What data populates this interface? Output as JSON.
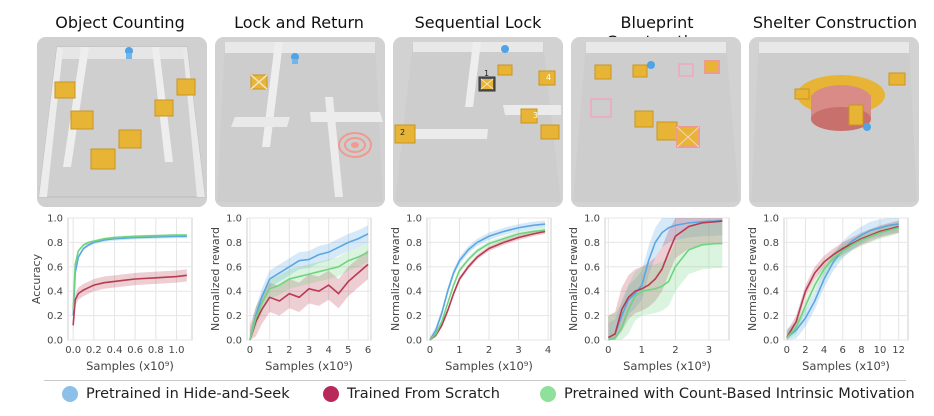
{
  "panel_titles": [
    "Object Counting",
    "Lock and Return",
    "Sequential Lock",
    "Blueprint Construction",
    "Shelter Construction"
  ],
  "legend": [
    {
      "label": "Pretrained in Hide-and-Seek",
      "color": "#6aaee0"
    },
    {
      "label": "Trained From Scratch",
      "color": "#b8285a"
    },
    {
      "label": "Pretrained with Count-Based Intrinsic Motivation",
      "color": "#78d98a"
    }
  ],
  "colors": {
    "blue": "#5aa7e3",
    "red": "#b83b50",
    "green": "#6fd47e",
    "box": "#e7b436",
    "floor": "#cfcfcf"
  },
  "chart_data": [
    {
      "type": "line",
      "title": "Object Counting",
      "xlabel": "Samples (x10⁹)",
      "ylabel": "Accuracy",
      "xlim": [
        -0.05,
        1.15
      ],
      "ylim": [
        0,
        1.0
      ],
      "xticks": [
        0.0,
        0.2,
        0.4,
        0.6,
        0.8,
        1.0
      ],
      "xtick_labels": [
        "0.0",
        "0.2",
        "0.4",
        "0.6",
        "0.8",
        "1.0"
      ],
      "yticks": [
        0.0,
        0.2,
        0.4,
        0.6,
        0.8,
        1.0
      ],
      "ytick_labels": [
        "0.0",
        "0.2",
        "0.4",
        "0.6",
        "0.8",
        "1.0"
      ],
      "series": [
        {
          "name": "Pretrained in Hide-and-Seek",
          "color": "#5aa7e3",
          "x": [
            0,
            0.02,
            0.05,
            0.1,
            0.15,
            0.2,
            0.3,
            0.4,
            0.6,
            0.8,
            1.0,
            1.1
          ],
          "y": [
            0.2,
            0.55,
            0.68,
            0.75,
            0.78,
            0.8,
            0.82,
            0.83,
            0.84,
            0.845,
            0.85,
            0.85
          ],
          "band": 0.015
        },
        {
          "name": "Trained From Scratch",
          "color": "#b83b50",
          "x": [
            0,
            0.02,
            0.05,
            0.1,
            0.15,
            0.2,
            0.3,
            0.4,
            0.6,
            0.8,
            1.0,
            1.1
          ],
          "y": [
            0.12,
            0.33,
            0.38,
            0.41,
            0.43,
            0.45,
            0.47,
            0.48,
            0.5,
            0.51,
            0.52,
            0.53
          ],
          "band": 0.05
        },
        {
          "name": "Pretrained with Count-Based Intrinsic Motivation",
          "color": "#6fd47e",
          "x": [
            0,
            0.02,
            0.05,
            0.1,
            0.15,
            0.2,
            0.3,
            0.4,
            0.6,
            0.8,
            1.0,
            1.1
          ],
          "y": [
            0.25,
            0.62,
            0.73,
            0.78,
            0.8,
            0.81,
            0.83,
            0.84,
            0.85,
            0.855,
            0.86,
            0.86
          ],
          "band": 0.01
        }
      ]
    },
    {
      "type": "line",
      "title": "Lock and Return",
      "xlabel": "Samples (x10⁹)",
      "ylabel": "Normalized reward",
      "xlim": [
        -0.15,
        6.15
      ],
      "ylim": [
        0,
        1.0
      ],
      "xticks": [
        0,
        1,
        2,
        3,
        4,
        5,
        6
      ],
      "xtick_labels": [
        "0",
        "1",
        "2",
        "3",
        "4",
        "5",
        "6"
      ],
      "yticks": [
        0.0,
        0.2,
        0.4,
        0.6,
        0.8,
        1.0
      ],
      "ytick_labels": [
        "0.0",
        "0.2",
        "0.4",
        "0.6",
        "0.8",
        "1.0"
      ],
      "series": [
        {
          "name": "Pretrained in Hide-and-Seek",
          "color": "#5aa7e3",
          "x": [
            0,
            0.3,
            0.6,
            1,
            1.5,
            2,
            2.5,
            3,
            3.5,
            4,
            4.5,
            5,
            5.5,
            6
          ],
          "y": [
            0,
            0.2,
            0.35,
            0.5,
            0.55,
            0.6,
            0.65,
            0.66,
            0.7,
            0.72,
            0.76,
            0.8,
            0.83,
            0.87
          ],
          "band": 0.07
        },
        {
          "name": "Trained From Scratch",
          "color": "#b83b50",
          "x": [
            0,
            0.3,
            0.6,
            1,
            1.5,
            2,
            2.5,
            3,
            3.5,
            4,
            4.5,
            5,
            5.5,
            6
          ],
          "y": [
            0,
            0.15,
            0.25,
            0.35,
            0.32,
            0.38,
            0.35,
            0.42,
            0.4,
            0.45,
            0.38,
            0.48,
            0.55,
            0.62
          ],
          "band": 0.12
        },
        {
          "name": "Pretrained with Count-Based Intrinsic Motivation",
          "color": "#6fd47e",
          "x": [
            0,
            0.3,
            0.6,
            1,
            1.5,
            2,
            2.5,
            3,
            3.5,
            4,
            4.5,
            5,
            5.5,
            6
          ],
          "y": [
            0,
            0.18,
            0.3,
            0.42,
            0.45,
            0.5,
            0.52,
            0.54,
            0.56,
            0.58,
            0.6,
            0.65,
            0.68,
            0.72
          ],
          "band": 0.08
        }
      ]
    },
    {
      "type": "line",
      "title": "Sequential Lock",
      "xlabel": "Samples (x10⁹)",
      "ylabel": "Normalized reward",
      "xlim": [
        -0.1,
        4.1
      ],
      "ylim": [
        0,
        1.0
      ],
      "xticks": [
        0,
        1,
        2,
        3,
        4
      ],
      "xtick_labels": [
        "0",
        "1",
        "2",
        "3",
        "4"
      ],
      "yticks": [
        0.0,
        0.2,
        0.4,
        0.6,
        0.8,
        1.0
      ],
      "ytick_labels": [
        "0.0",
        "0.2",
        "0.4",
        "0.6",
        "0.8",
        "1.0"
      ],
      "series": [
        {
          "name": "Pretrained in Hide-and-Seek",
          "color": "#5aa7e3",
          "x": [
            0,
            0.2,
            0.4,
            0.6,
            0.8,
            1,
            1.3,
            1.6,
            2,
            2.5,
            3,
            3.5,
            3.9
          ],
          "y": [
            0,
            0.08,
            0.22,
            0.4,
            0.55,
            0.65,
            0.74,
            0.8,
            0.85,
            0.89,
            0.92,
            0.94,
            0.95
          ],
          "band": 0.03
        },
        {
          "name": "Trained From Scratch",
          "color": "#b83b50",
          "x": [
            0,
            0.2,
            0.4,
            0.6,
            0.8,
            1,
            1.3,
            1.6,
            2,
            2.5,
            3,
            3.5,
            3.9
          ],
          "y": [
            0,
            0.04,
            0.12,
            0.24,
            0.38,
            0.5,
            0.6,
            0.68,
            0.75,
            0.8,
            0.84,
            0.87,
            0.89
          ],
          "band": 0.02
        },
        {
          "name": "Pretrained with Count-Based Intrinsic Motivation",
          "color": "#6fd47e",
          "x": [
            0,
            0.2,
            0.4,
            0.6,
            0.8,
            1,
            1.3,
            1.6,
            2,
            2.5,
            3,
            3.5,
            3.9
          ],
          "y": [
            0,
            0.05,
            0.15,
            0.3,
            0.45,
            0.57,
            0.66,
            0.73,
            0.79,
            0.83,
            0.87,
            0.89,
            0.9
          ],
          "band": 0.02
        }
      ]
    },
    {
      "type": "line",
      "title": "Blueprint Construction",
      "xlabel": "Samples (x10⁹)",
      "ylabel": "Normalized reward",
      "xlim": [
        -0.1,
        3.6
      ],
      "ylim": [
        0,
        1.0
      ],
      "xticks": [
        0,
        1,
        2,
        3
      ],
      "xtick_labels": [
        "0",
        "1",
        "2",
        "3"
      ],
      "yticks": [
        0.0,
        0.2,
        0.4,
        0.6,
        0.8,
        1.0
      ],
      "ytick_labels": [
        "0.0",
        "0.2",
        "0.4",
        "0.6",
        "0.8",
        "1.0"
      ],
      "series": [
        {
          "name": "Pretrained in Hide-and-Seek",
          "color": "#5aa7e3",
          "x": [
            0,
            0.2,
            0.4,
            0.6,
            0.8,
            1.0,
            1.2,
            1.4,
            1.6,
            1.8,
            2.0,
            2.4,
            2.8,
            3.2,
            3.4
          ],
          "y": [
            0.02,
            0.05,
            0.2,
            0.33,
            0.38,
            0.45,
            0.65,
            0.8,
            0.88,
            0.92,
            0.94,
            0.96,
            0.97,
            0.975,
            0.98
          ],
          "band": 0.12
        },
        {
          "name": "Trained From Scratch",
          "color": "#b83b50",
          "x": [
            0,
            0.2,
            0.4,
            0.6,
            0.8,
            1.0,
            1.2,
            1.4,
            1.6,
            1.8,
            2.0,
            2.4,
            2.8,
            3.2,
            3.4
          ],
          "y": [
            0.02,
            0.05,
            0.25,
            0.35,
            0.4,
            0.42,
            0.45,
            0.5,
            0.58,
            0.72,
            0.85,
            0.93,
            0.96,
            0.97,
            0.975
          ],
          "band": 0.18
        },
        {
          "name": "Pretrained with Count-Based Intrinsic Motivation",
          "color": "#6fd47e",
          "x": [
            0,
            0.2,
            0.4,
            0.6,
            0.8,
            1.0,
            1.2,
            1.4,
            1.6,
            1.8,
            2.0,
            2.4,
            2.8,
            3.2,
            3.4
          ],
          "y": [
            0.0,
            0.02,
            0.1,
            0.25,
            0.36,
            0.4,
            0.41,
            0.42,
            0.44,
            0.48,
            0.6,
            0.74,
            0.78,
            0.79,
            0.79
          ],
          "band": 0.2
        }
      ]
    },
    {
      "type": "line",
      "title": "Shelter Construction",
      "xlabel": "Samples (x10⁹)",
      "ylabel": "Normalized reward",
      "xlim": [
        -0.3,
        13.0
      ],
      "ylim": [
        0,
        1.0
      ],
      "xticks": [
        0,
        2,
        4,
        6,
        8,
        10,
        12
      ],
      "xtick_labels": [
        "0",
        "2",
        "4",
        "6",
        "8",
        "10",
        "12"
      ],
      "yticks": [
        0.0,
        0.2,
        0.4,
        0.6,
        0.8,
        1.0
      ],
      "ytick_labels": [
        "0.0",
        "0.2",
        "0.4",
        "0.6",
        "0.8",
        "1.0"
      ],
      "series": [
        {
          "name": "Pretrained in Hide-and-Seek",
          "color": "#5aa7e3",
          "x": [
            0,
            1,
            2,
            3,
            4,
            5,
            6,
            7,
            8,
            9,
            10,
            11,
            12
          ],
          "y": [
            0.02,
            0.08,
            0.18,
            0.32,
            0.5,
            0.64,
            0.74,
            0.81,
            0.86,
            0.9,
            0.92,
            0.94,
            0.95
          ],
          "band": 0.07
        },
        {
          "name": "Trained From Scratch",
          "color": "#b83b50",
          "x": [
            0,
            1,
            2,
            3,
            4,
            5,
            6,
            7,
            8,
            9,
            10,
            11,
            12
          ],
          "y": [
            0.02,
            0.15,
            0.4,
            0.55,
            0.64,
            0.7,
            0.75,
            0.79,
            0.83,
            0.86,
            0.89,
            0.91,
            0.93
          ],
          "band": 0.05
        },
        {
          "name": "Pretrained with Count-Based Intrinsic Motivation",
          "color": "#6fd47e",
          "x": [
            0,
            1,
            2,
            3,
            4,
            5,
            6,
            7,
            8,
            9,
            10,
            11,
            12
          ],
          "y": [
            0.02,
            0.1,
            0.28,
            0.45,
            0.58,
            0.67,
            0.73,
            0.78,
            0.82,
            0.85,
            0.88,
            0.9,
            0.92
          ],
          "band": 0.05
        }
      ]
    }
  ]
}
